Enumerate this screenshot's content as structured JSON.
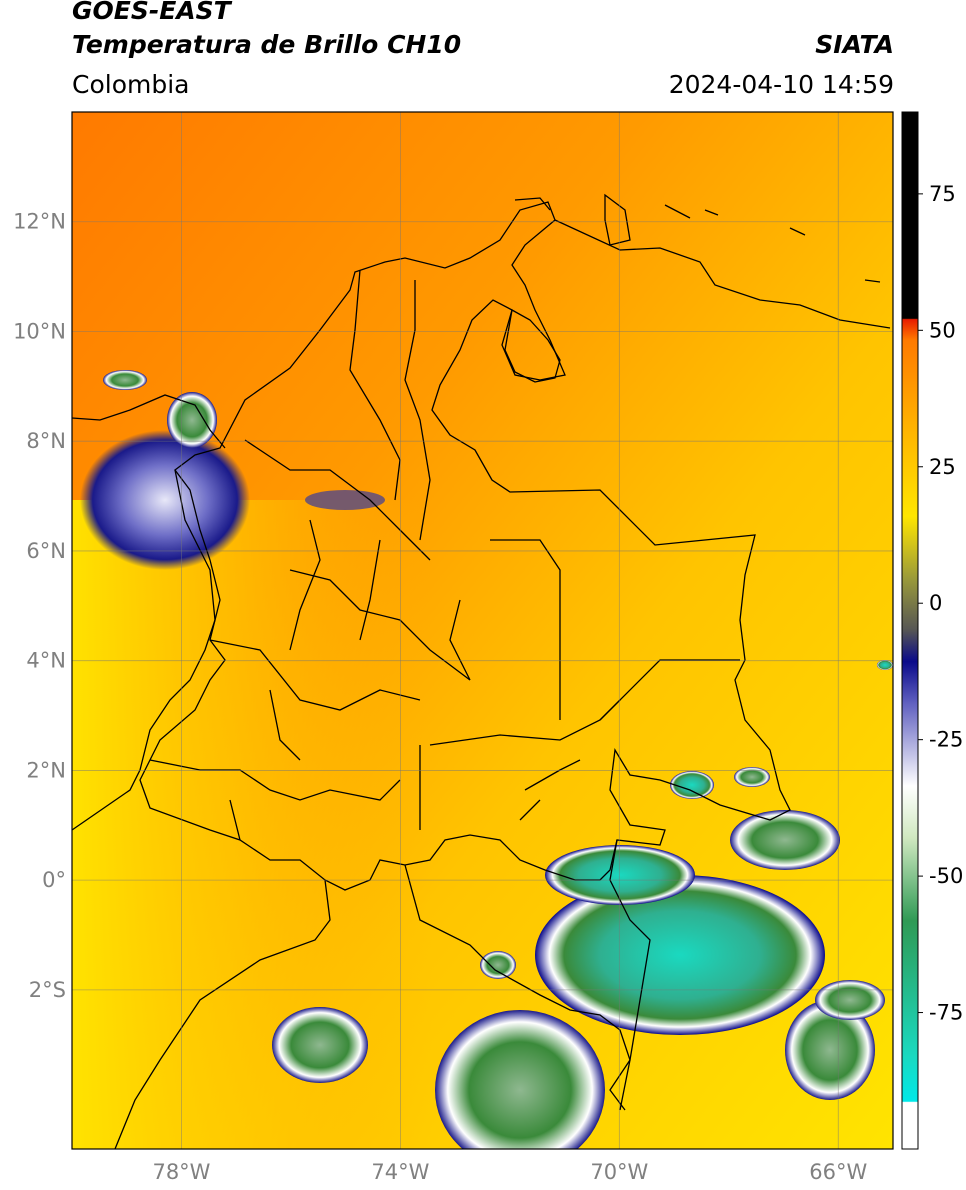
{
  "header": {
    "satellite": "GOES-EAST",
    "product": "Temperatura de Brillo CH10",
    "region": "Colombia",
    "agency": "SIATA",
    "datetime": "2024-04-10 14:59"
  },
  "map": {
    "lat_labels": [
      "12°N",
      "10°N",
      "8°N",
      "6°N",
      "4°N",
      "2°N",
      "0°",
      "2°S"
    ],
    "lon_labels": [
      "78°W",
      "74°W",
      "70°W",
      "66°W"
    ],
    "lat_values": [
      12,
      10,
      8,
      6,
      4,
      2,
      0,
      -2
    ],
    "lon_values": [
      -78,
      -74,
      -70,
      -66
    ],
    "extent": {
      "lon_min": -80,
      "lon_max": -65,
      "lat_min": -4.9,
      "lat_max": 14
    }
  },
  "colorbar": {
    "ticks": [
      "75",
      "50",
      "25",
      "0",
      "-25",
      "-50",
      "-75"
    ],
    "tick_values": [
      75,
      50,
      25,
      0,
      -25,
      -50,
      -75
    ],
    "range": [
      -100,
      90
    ],
    "colors": {
      "warm_top": "#000000",
      "red": "#e81c00",
      "orange": "#ff8a00",
      "yellow": "#ffe600",
      "olive": "#6b6b2a",
      "navy": "#0a0a8a",
      "white": "#ffffff",
      "green": "#3a8a3a",
      "teal": "#1ad9c0",
      "cyan": "#00e8e8"
    }
  }
}
